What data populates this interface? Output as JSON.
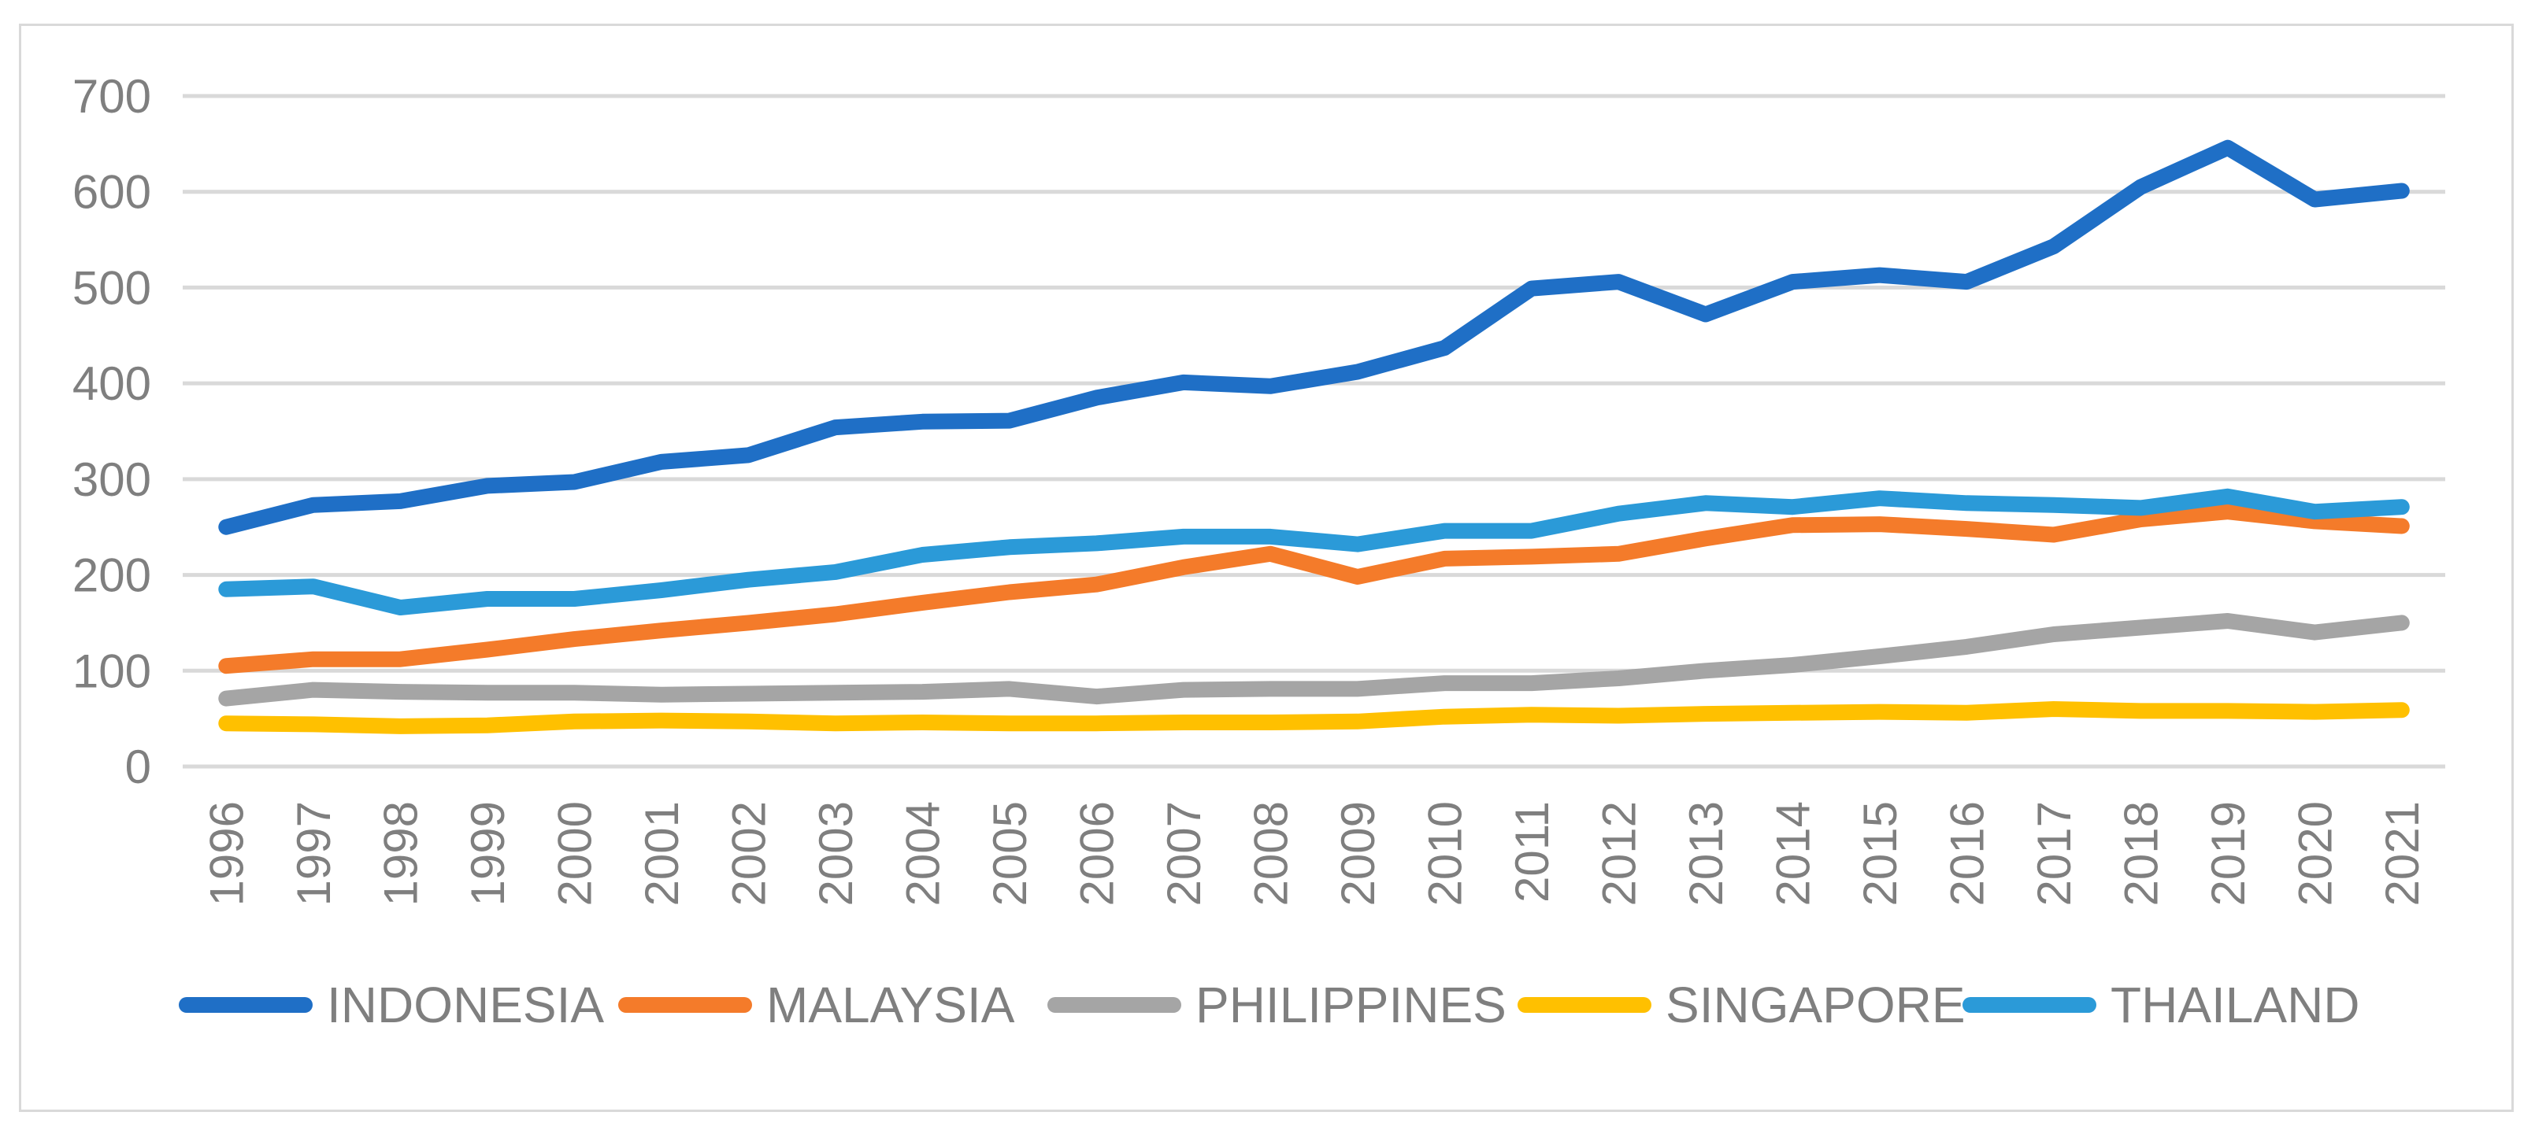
{
  "chart_data": {
    "type": "line",
    "title": "",
    "xlabel": "",
    "ylabel": "",
    "ylim": [
      0,
      700
    ],
    "yticks": [
      0,
      100,
      200,
      300,
      400,
      500,
      600,
      700
    ],
    "ytick_labels": [
      "0",
      "100",
      "200",
      "300",
      "400",
      "500",
      "600",
      "700"
    ],
    "grid": true,
    "legend_position": "bottom",
    "categories": [
      "1996",
      "1997",
      "1998",
      "1999",
      "2000",
      "2001",
      "2002",
      "2003",
      "2004",
      "2005",
      "2006",
      "2007",
      "2008",
      "2009",
      "2010",
      "2011",
      "2012",
      "2013",
      "2014",
      "2015",
      "2016",
      "2017",
      "2018",
      "2019",
      "2020",
      "2021"
    ],
    "series": [
      {
        "name": "INDONESIA",
        "color": "#1f6fc6",
        "values": [
          250,
          273,
          277,
          293,
          297,
          318,
          325,
          354,
          360,
          361,
          385,
          401,
          397,
          412,
          437,
          499,
          506,
          472,
          506,
          513,
          506,
          543,
          605,
          646,
          592,
          601
        ]
      },
      {
        "name": "MALAYSIA",
        "color": "#f47b2a",
        "values": [
          105,
          112,
          112,
          122,
          133,
          142,
          150,
          159,
          171,
          182,
          190,
          208,
          222,
          198,
          217,
          219,
          222,
          238,
          252,
          253,
          248,
          242,
          258,
          266,
          256,
          251
        ]
      },
      {
        "name": "PHILIPPINES",
        "color": "#a5a5a5",
        "values": [
          71,
          80,
          78,
          77,
          77,
          75,
          76,
          77,
          78,
          81,
          73,
          80,
          81,
          81,
          87,
          87,
          92,
          100,
          106,
          115,
          125,
          138,
          145,
          152,
          140,
          150
        ]
      },
      {
        "name": "SINGAPORE",
        "color": "#ffc000",
        "values": [
          45,
          44,
          42,
          43,
          47,
          48,
          47,
          45,
          46,
          45,
          45,
          46,
          46,
          47,
          52,
          54,
          53,
          55,
          56,
          57,
          56,
          60,
          58,
          58,
          57,
          59
        ]
      },
      {
        "name": "THAILAND",
        "color": "#2b9ad8",
        "values": [
          185,
          188,
          166,
          175,
          175,
          184,
          195,
          203,
          221,
          229,
          233,
          240,
          240,
          232,
          246,
          246,
          264,
          275,
          271,
          280,
          275,
          273,
          270,
          282,
          266,
          271
        ]
      }
    ]
  }
}
